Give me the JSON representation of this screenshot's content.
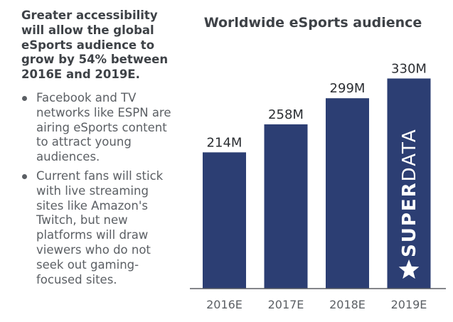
{
  "sidebar": {
    "headline": "Greater accessibility will allow the global eSports audience to grow by 54% between 2016E and 2019E.",
    "bullets": [
      "Facebook and TV networks like ESPN are airing eSports content to attract young audiences.",
      "Current fans will stick with live streaming sites like Amazon's Twitch, but new platforms will draw viewers who do not seek out gaming-focused sites."
    ]
  },
  "chart_data": {
    "type": "bar",
    "title": "Worldwide eSports audience",
    "categories": [
      "2016E",
      "2017E",
      "2018E",
      "2019E"
    ],
    "values": [
      214,
      258,
      299,
      330
    ],
    "value_labels": [
      "214M",
      "258M",
      "299M",
      "330M"
    ],
    "ylim": [
      0,
      345
    ],
    "grid": false,
    "bar_color": "#2c3e73",
    "axis_color": "#5b5f64",
    "watermark": "SUPERDATA"
  }
}
